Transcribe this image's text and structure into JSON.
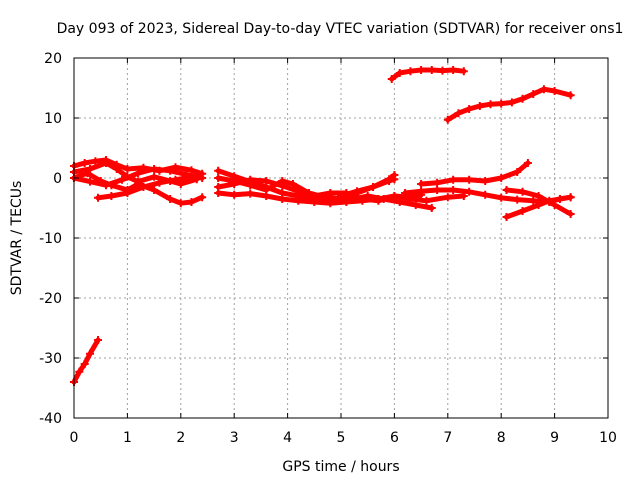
{
  "chart_data": {
    "type": "scatter",
    "title": "Day 093 of 2023, Sidereal Day-to-day VTEC variation (SDTVAR) for receiver ons1",
    "xlabel": "GPS time / hours",
    "ylabel": "SDTVAR / TECUs",
    "xlim": [
      0,
      10
    ],
    "ylim": [
      -40,
      20
    ],
    "xticks": [
      0,
      1,
      2,
      3,
      4,
      5,
      6,
      7,
      8,
      9,
      10
    ],
    "yticks": [
      -40,
      -30,
      -20,
      -10,
      0,
      10,
      20
    ],
    "grid": true,
    "color": "#ff0000",
    "series": [
      {
        "points": [
          [
            0.0,
            -34.0
          ],
          [
            0.1,
            -32.3
          ],
          [
            0.2,
            -31.0
          ],
          [
            0.3,
            -29.3
          ],
          [
            0.45,
            -27.0
          ]
        ]
      },
      {
        "points": [
          [
            0.0,
            2.0
          ],
          [
            0.2,
            2.5
          ],
          [
            0.4,
            2.8
          ],
          [
            0.6,
            3.0
          ],
          [
            0.8,
            2.2
          ],
          [
            1.0,
            1.5
          ],
          [
            1.3,
            1.7
          ],
          [
            1.6,
            1.2
          ],
          [
            1.9,
            1.8
          ],
          [
            2.2,
            1.3
          ],
          [
            2.4,
            0.7
          ]
        ]
      },
      {
        "points": [
          [
            0.0,
            1.0
          ],
          [
            0.3,
            1.5
          ],
          [
            0.6,
            2.5
          ],
          [
            0.8,
            1.5
          ],
          [
            1.0,
            0.2
          ],
          [
            1.2,
            -0.6
          ],
          [
            1.5,
            0.2
          ],
          [
            1.8,
            -0.5
          ],
          [
            2.0,
            -1.0
          ],
          [
            2.3,
            -0.2
          ]
        ]
      },
      {
        "points": [
          [
            0.0,
            0.0
          ],
          [
            0.3,
            -0.6
          ],
          [
            0.6,
            -1.2
          ],
          [
            0.9,
            -0.3
          ],
          [
            1.2,
            0.8
          ],
          [
            1.5,
            1.5
          ],
          [
            1.8,
            1.2
          ],
          [
            2.1,
            0.6
          ],
          [
            2.4,
            0.0
          ]
        ]
      },
      {
        "points": [
          [
            0.0,
            0.0
          ],
          [
            0.25,
            0.8
          ],
          [
            0.5,
            -0.5
          ],
          [
            0.7,
            -1.2
          ],
          [
            1.0,
            -2.0
          ],
          [
            1.2,
            -1.0
          ],
          [
            1.5,
            -2.0
          ],
          [
            1.8,
            -3.5
          ],
          [
            2.0,
            -4.2
          ],
          [
            2.2,
            -4.0
          ],
          [
            2.4,
            -3.2
          ]
        ]
      },
      {
        "points": [
          [
            0.45,
            -3.3
          ],
          [
            0.7,
            -3.0
          ],
          [
            1.0,
            -2.5
          ],
          [
            1.3,
            -1.5
          ],
          [
            1.6,
            -0.8
          ],
          [
            1.9,
            -0.3
          ],
          [
            2.2,
            0.2
          ]
        ]
      },
      {
        "points": [
          [
            2.7,
            1.2
          ],
          [
            3.0,
            0.3
          ],
          [
            3.3,
            -0.6
          ],
          [
            3.6,
            -1.5
          ],
          [
            3.9,
            -2.5
          ],
          [
            4.2,
            -3.0
          ],
          [
            4.5,
            -3.5
          ],
          [
            4.8,
            -3.8
          ],
          [
            5.2,
            -3.6
          ],
          [
            5.5,
            -3.0
          ],
          [
            5.8,
            -3.5
          ],
          [
            6.1,
            -4.0
          ],
          [
            6.4,
            -4.5
          ],
          [
            6.7,
            -5.0
          ]
        ]
      },
      {
        "points": [
          [
            2.7,
            -1.5
          ],
          [
            3.0,
            -1.0
          ],
          [
            3.3,
            -0.3
          ],
          [
            3.6,
            -0.5
          ],
          [
            3.9,
            -1.3
          ],
          [
            4.2,
            -2.2
          ],
          [
            4.5,
            -3.0
          ],
          [
            4.7,
            -3.8
          ]
        ]
      },
      {
        "points": [
          [
            2.7,
            0.0
          ],
          [
            3.0,
            -0.5
          ],
          [
            3.3,
            -1.2
          ],
          [
            3.6,
            -2.0
          ],
          [
            3.9,
            -0.5
          ],
          [
            4.1,
            -1.0
          ],
          [
            4.4,
            -2.5
          ],
          [
            4.7,
            -3.2
          ],
          [
            5.0,
            -3.5
          ],
          [
            5.3,
            -2.5
          ],
          [
            5.6,
            -1.5
          ],
          [
            5.9,
            -0.2
          ],
          [
            6.0,
            0.5
          ]
        ]
      },
      {
        "points": [
          [
            2.7,
            -2.5
          ],
          [
            3.0,
            -2.8
          ],
          [
            3.3,
            -2.6
          ],
          [
            3.6,
            -3.0
          ],
          [
            3.9,
            -3.5
          ],
          [
            4.2,
            -3.8
          ],
          [
            4.5,
            -4.0
          ],
          [
            4.8,
            -4.2
          ],
          [
            5.1,
            -4.0
          ],
          [
            5.4,
            -3.8
          ],
          [
            5.7,
            -3.5
          ],
          [
            6.0,
            -3.0
          ],
          [
            6.3,
            -3.5
          ],
          [
            6.6,
            -3.8
          ],
          [
            7.0,
            -3.2
          ],
          [
            7.3,
            -3.0
          ]
        ]
      },
      {
        "points": [
          [
            4.5,
            -3.0
          ],
          [
            4.8,
            -2.5
          ],
          [
            5.1,
            -2.5
          ],
          [
            5.4,
            -3.5
          ],
          [
            5.7,
            -3.8
          ],
          [
            6.0,
            -3.0
          ],
          [
            6.3,
            -3.2
          ],
          [
            6.5,
            -2.8
          ]
        ]
      },
      {
        "points": [
          [
            5.0,
            -3.0
          ],
          [
            5.3,
            -2.2
          ],
          [
            5.6,
            -1.5
          ],
          [
            5.9,
            -0.5
          ],
          [
            6.0,
            -0.2
          ]
        ]
      },
      {
        "points": [
          [
            6.5,
            -1.0
          ],
          [
            6.8,
            -0.8
          ],
          [
            7.1,
            -0.3
          ],
          [
            7.4,
            -0.3
          ],
          [
            7.7,
            -0.5
          ],
          [
            8.0,
            0.0
          ],
          [
            8.3,
            1.0
          ],
          [
            8.5,
            2.5
          ]
        ]
      },
      {
        "points": [
          [
            6.2,
            -2.5
          ],
          [
            6.5,
            -2.2
          ],
          [
            6.8,
            -2.0
          ],
          [
            7.1,
            -2.0
          ],
          [
            7.4,
            -2.3
          ],
          [
            7.7,
            -2.8
          ],
          [
            8.0,
            -3.3
          ],
          [
            8.3,
            -3.6
          ],
          [
            8.6,
            -3.8
          ],
          [
            8.9,
            -4.0
          ],
          [
            9.1,
            -3.5
          ],
          [
            9.3,
            -3.2
          ]
        ]
      },
      {
        "points": [
          [
            8.1,
            -2.0
          ],
          [
            8.4,
            -2.3
          ],
          [
            8.7,
            -3.0
          ],
          [
            9.0,
            -4.5
          ],
          [
            9.3,
            -6.0
          ]
        ]
      },
      {
        "points": [
          [
            8.1,
            -6.5
          ],
          [
            8.4,
            -5.5
          ],
          [
            8.7,
            -4.5
          ],
          [
            8.9,
            -3.8
          ],
          [
            9.1,
            -3.5
          ],
          [
            9.3,
            -3.2
          ]
        ]
      },
      {
        "points": [
          [
            5.95,
            16.5
          ],
          [
            6.1,
            17.5
          ],
          [
            6.3,
            17.8
          ],
          [
            6.5,
            18.0
          ],
          [
            6.7,
            18.0
          ],
          [
            6.9,
            17.9
          ],
          [
            7.1,
            18.0
          ],
          [
            7.3,
            17.8
          ]
        ]
      },
      {
        "points": [
          [
            7.0,
            9.7
          ],
          [
            7.2,
            10.8
          ],
          [
            7.4,
            11.5
          ],
          [
            7.6,
            12.0
          ],
          [
            7.8,
            12.3
          ],
          [
            8.0,
            12.4
          ],
          [
            8.2,
            12.6
          ],
          [
            8.4,
            13.2
          ],
          [
            8.6,
            14.0
          ],
          [
            8.8,
            14.8
          ],
          [
            9.0,
            14.5
          ],
          [
            9.3,
            13.8
          ]
        ]
      }
    ]
  }
}
